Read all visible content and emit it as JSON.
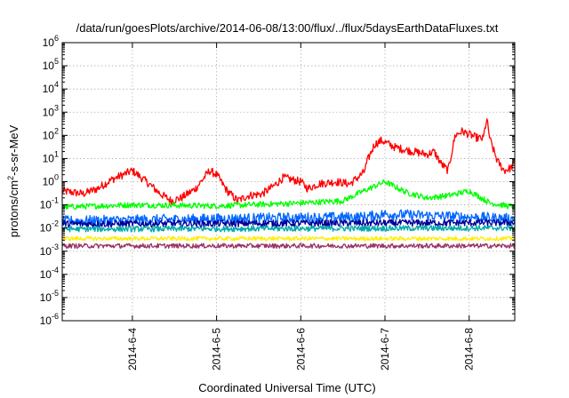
{
  "chart_data": {
    "type": "line",
    "title": "/data/run/goesPlots/archive/2014-06-08/13:00/flux/../flux/5daysEarthDataFluxes.txt",
    "xlabel": "Coordinated Universal Time (UTC)",
    "ylabel": "protons/cm²-s-sr-MeV",
    "ylabel_parts": {
      "pre": "protons/cm",
      "sup": "2",
      "post": "-s-sr-MeV"
    },
    "y_scale": "log",
    "ylim": [
      1e-06,
      1000000.0
    ],
    "y_ticks": [
      {
        "value": 1e-06,
        "base": "10",
        "exp": "-6"
      },
      {
        "value": 1e-05,
        "base": "10",
        "exp": "-5"
      },
      {
        "value": 0.0001,
        "base": "10",
        "exp": "-4"
      },
      {
        "value": 0.001,
        "base": "10",
        "exp": "-3"
      },
      {
        "value": 0.01,
        "base": "10",
        "exp": "-2"
      },
      {
        "value": 0.1,
        "base": "10",
        "exp": "-1"
      },
      {
        "value": 1,
        "base": "10",
        "exp": "0"
      },
      {
        "value": 10.0,
        "base": "10",
        "exp": "1"
      },
      {
        "value": 100.0,
        "base": "10",
        "exp": "2"
      },
      {
        "value": 1000.0,
        "base": "10",
        "exp": "3"
      },
      {
        "value": 10000.0,
        "base": "10",
        "exp": "4"
      },
      {
        "value": 100000.0,
        "base": "10",
        "exp": "5"
      },
      {
        "value": 1000000.0,
        "base": "10",
        "exp": "6"
      }
    ],
    "xlim": [
      "2014-06-03T04:00",
      "2014-06-08T13:00"
    ],
    "x_ticks": [
      "2014-6-4",
      "2014-6-5",
      "2014-6-6",
      "2014-6-7",
      "2014-6-8"
    ],
    "x_tick_dates": [
      "2014-06-04T00:00",
      "2014-06-05T00:00",
      "2014-06-06T00:00",
      "2014-06-07T00:00",
      "2014-06-08T00:00"
    ],
    "grid": true,
    "series": [
      {
        "color": "#ff0000",
        "noise": 0.35,
        "x": [
          "2014-06-03T04:00",
          "2014-06-03T10:00",
          "2014-06-03T14:00",
          "2014-06-03T18:00",
          "2014-06-04T00:00",
          "2014-06-04T04:00",
          "2014-06-04T08:00",
          "2014-06-04T11:00",
          "2014-06-04T14:00",
          "2014-06-04T18:00",
          "2014-06-04T22:00",
          "2014-06-05T00:00",
          "2014-06-05T03:00",
          "2014-06-05T06:00",
          "2014-06-05T09:00",
          "2014-06-05T13:00",
          "2014-06-05T16:00",
          "2014-06-05T19:00",
          "2014-06-06T00:00",
          "2014-06-06T02:00",
          "2014-06-06T05:00",
          "2014-06-06T10:00",
          "2014-06-06T14:00",
          "2014-06-06T18:00",
          "2014-06-06T19:00",
          "2014-06-06T21:00",
          "2014-06-06T23:00",
          "2014-06-07T03:00",
          "2014-06-07T08:00",
          "2014-06-07T12:00",
          "2014-06-07T14:00",
          "2014-06-07T16:00",
          "2014-06-07T18:00",
          "2014-06-07T20:00",
          "2014-06-07T22:00",
          "2014-06-08T02:00",
          "2014-06-08T04:00",
          "2014-06-08T05:00",
          "2014-06-08T06:00",
          "2014-06-08T08:00",
          "2014-06-08T10:00",
          "2014-06-08T12:00",
          "2014-06-08T13:00"
        ],
        "values": [
          0.4,
          0.3,
          0.5,
          1.2,
          3.0,
          1.0,
          0.3,
          0.15,
          0.2,
          0.5,
          3.0,
          2.0,
          0.4,
          0.15,
          0.25,
          0.3,
          0.6,
          1.5,
          1.0,
          0.5,
          0.8,
          1.0,
          0.8,
          2.5,
          8.0,
          40,
          60,
          30,
          20,
          15,
          20,
          6,
          3,
          100,
          150,
          80,
          70,
          500,
          60,
          8,
          3,
          4,
          8
        ]
      },
      {
        "color": "#00ff00",
        "noise": 0.25,
        "x": [
          "2014-06-03T04:00",
          "2014-06-04T00:00",
          "2014-06-05T00:00",
          "2014-06-06T00:00",
          "2014-06-06T12:00",
          "2014-06-06T18:00",
          "2014-06-07T00:00",
          "2014-06-07T06:00",
          "2014-06-07T12:00",
          "2014-06-07T18:00",
          "2014-06-08T00:00",
          "2014-06-08T06:00",
          "2014-06-08T13:00"
        ],
        "values": [
          0.08,
          0.1,
          0.09,
          0.12,
          0.15,
          0.4,
          1.0,
          0.35,
          0.2,
          0.25,
          0.4,
          0.12,
          0.08
        ]
      },
      {
        "color": "#0066ff",
        "noise": 0.45,
        "x": [
          "2014-06-03T04:00",
          "2014-06-05T00:00",
          "2014-06-06T18:00",
          "2014-06-07T00:00",
          "2014-06-08T00:00",
          "2014-06-08T13:00"
        ],
        "values": [
          0.02,
          0.025,
          0.03,
          0.04,
          0.03,
          0.025
        ]
      },
      {
        "color": "#000099",
        "noise": 0.3,
        "x": [
          "2014-06-03T04:00",
          "2014-06-08T13:00"
        ],
        "values": [
          0.015,
          0.017
        ]
      },
      {
        "color": "#00aaaa",
        "noise": 0.25,
        "x": [
          "2014-06-03T04:00",
          "2014-06-08T13:00"
        ],
        "values": [
          0.009,
          0.01
        ]
      },
      {
        "color": "#ffee00",
        "noise": 0.18,
        "x": [
          "2014-06-03T04:00",
          "2014-06-08T13:00"
        ],
        "values": [
          0.0035,
          0.0035
        ]
      },
      {
        "color": "#993366",
        "noise": 0.2,
        "x": [
          "2014-06-03T04:00",
          "2014-06-08T13:00"
        ],
        "values": [
          0.0017,
          0.0017
        ]
      }
    ]
  }
}
